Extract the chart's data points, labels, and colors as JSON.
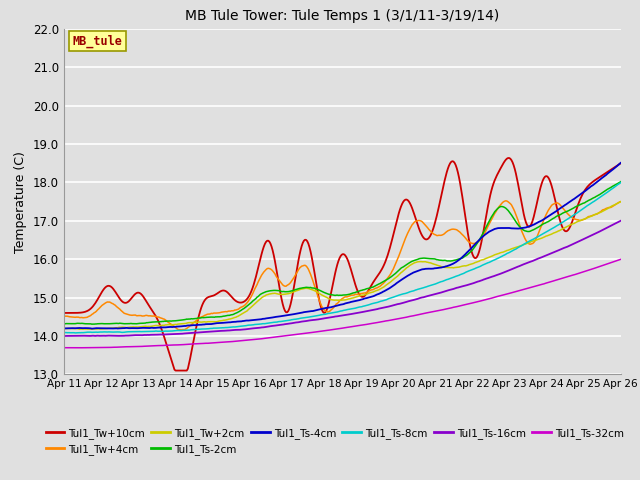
{
  "title": "MB Tule Tower: Tule Temps 1 (3/1/11-3/19/14)",
  "ylabel": "Temperature (C)",
  "xlim": [
    0,
    15
  ],
  "ylim": [
    13.0,
    22.0
  ],
  "yticks": [
    13.0,
    14.0,
    15.0,
    16.0,
    17.0,
    18.0,
    19.0,
    20.0,
    21.0,
    22.0
  ],
  "xtick_labels": [
    "Apr 11",
    "Apr 12",
    "Apr 13",
    "Apr 14",
    "Apr 15",
    "Apr 16",
    "Apr 17",
    "Apr 18",
    "Apr 19",
    "Apr 20",
    "Apr 21",
    "Apr 22",
    "Apr 23",
    "Apr 24",
    "Apr 25",
    "Apr 26"
  ],
  "background_color": "#e0e0e0",
  "plot_bg_color": "#e0e0e0",
  "grid_color": "#ffffff",
  "annotation_text": "MB_tule",
  "annotation_box_color": "#ffff99",
  "annotation_box_edge": "#999900",
  "series": [
    {
      "name": "Tul1_Tw+10cm",
      "color": "#cc0000",
      "lw": 1.3
    },
    {
      "name": "Tul1_Tw+4cm",
      "color": "#ff8800",
      "lw": 1.1
    },
    {
      "name": "Tul1_Tw+2cm",
      "color": "#cccc00",
      "lw": 1.1
    },
    {
      "name": "Tul1_Ts-2cm",
      "color": "#00bb00",
      "lw": 1.1
    },
    {
      "name": "Tul1_Ts-4cm",
      "color": "#0000cc",
      "lw": 1.3
    },
    {
      "name": "Tul1_Ts-8cm",
      "color": "#00cccc",
      "lw": 1.1
    },
    {
      "name": "Tul1_Ts-16cm",
      "color": "#8800cc",
      "lw": 1.3
    },
    {
      "name": "Tul1_Ts-32cm",
      "color": "#cc00cc",
      "lw": 1.1
    }
  ]
}
